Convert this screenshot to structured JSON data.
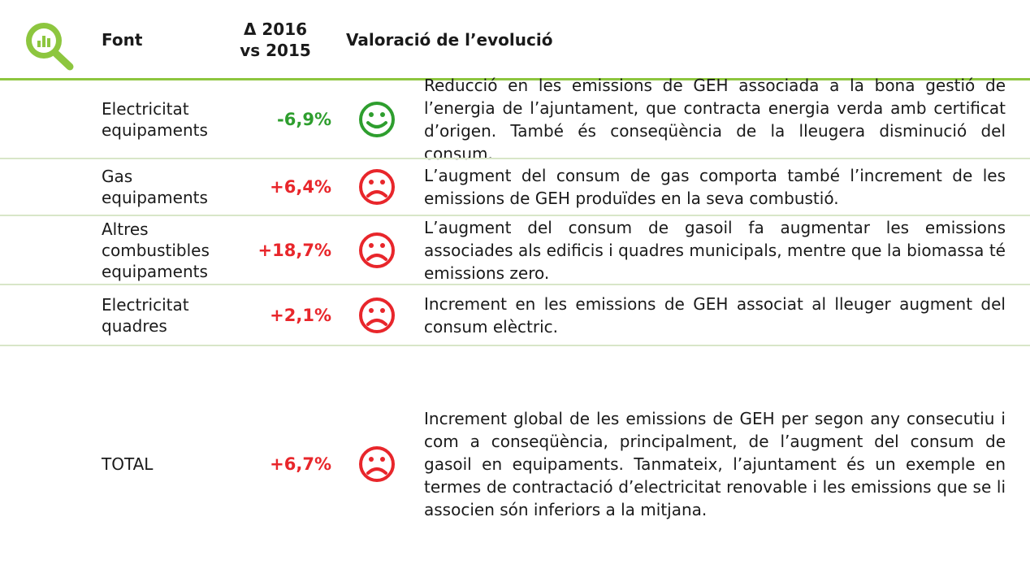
{
  "header": {
    "font": "Font",
    "delta": [
      "Δ 2016",
      "vs 2015"
    ],
    "assessment": "Valoració de l’evolució"
  },
  "rows": [
    {
      "font": "Electricitat equipaments",
      "delta": "-6,9%",
      "sentiment": "positive",
      "text": "Reducció en les emissions de GEH associada a la bona gestió de l’energia de l’ajuntament, que contracta energia verda amb certificat d’origen. També és conseqüència de la lleugera disminució del consum."
    },
    {
      "font": "Gas equipaments",
      "delta": "+6,4%",
      "sentiment": "negative",
      "text": "L’augment del consum de gas comporta també l’increment de les emissions de GEH produïdes en la seva combustió."
    },
    {
      "font": "Altres combustibles equipaments",
      "delta": "+18,7%",
      "sentiment": "negative",
      "text": "L’augment del consum de gasoil fa augmentar les emissions associades als edificis i quadres municipals, mentre que la biomassa té emissions zero."
    },
    {
      "font": "Electricitat quadres",
      "delta": "+2,1%",
      "sentiment": "negative",
      "text": "Increment en les emissions de GEH associat al lleuger augment del consum elèctric."
    },
    {
      "font": "TOTAL",
      "delta": "+6,7%",
      "sentiment": "negative",
      "text": "Increment global de les emissions de GEH per segon any consecutiu i com a conseqüència, principalment, de l’augment del consum de gasoil en equipaments. Tanmateix, l’ajuntament és un exemple en termes de contractació d’electricitat renovable i les emissions que se li associen són inferiors a la  mitjana."
    }
  ]
}
